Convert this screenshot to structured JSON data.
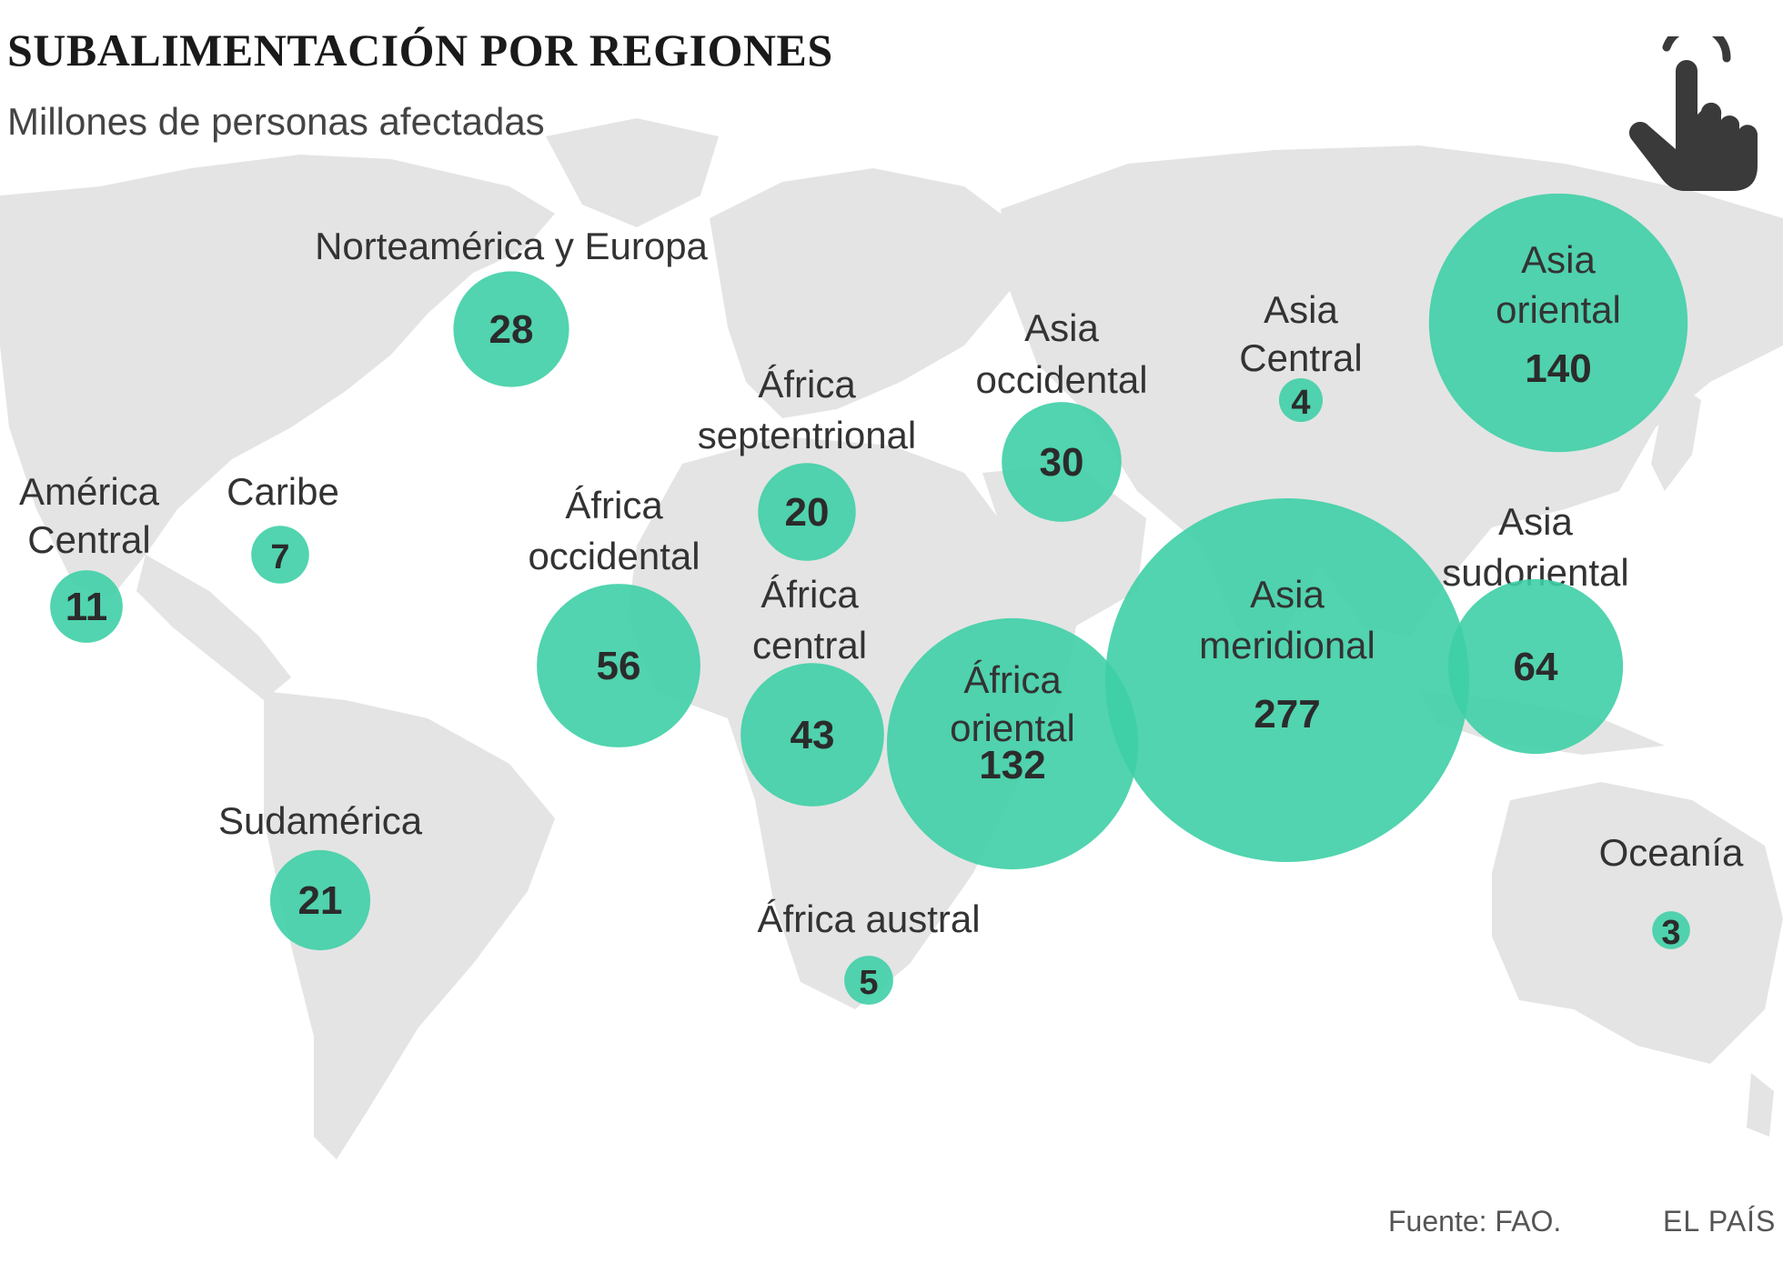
{
  "title": "SUBALIMENTACIÓN POR REGIONES",
  "subtitle": "Millones de personas afectadas",
  "footer": {
    "source": "Fuente: FAO.",
    "brand": "EL PAÍS"
  },
  "colors": {
    "bubble": "#3ecfa6",
    "land": "#e4e4e4",
    "label": "#333333",
    "value": "#2b2b2b",
    "hand_icon": "#3a3a3a"
  },
  "icon": "touch-hand-icon",
  "chart_data": {
    "type": "bubble-map",
    "unit": "Millones de personas",
    "regions": [
      {
        "id": "norteamerica-europa",
        "label": "Norteamérica y Europa",
        "value": 28
      },
      {
        "id": "america-central",
        "label": "América Central",
        "value": 11
      },
      {
        "id": "caribe",
        "label": "Caribe",
        "value": 7
      },
      {
        "id": "sudamerica",
        "label": "Sudamérica",
        "value": 21
      },
      {
        "id": "africa-septentrional",
        "label": "África septentrional",
        "value": 20
      },
      {
        "id": "africa-occidental",
        "label": "África occidental",
        "value": 56
      },
      {
        "id": "africa-central",
        "label": "África central",
        "value": 43
      },
      {
        "id": "africa-oriental",
        "label": "África oriental",
        "value": 132
      },
      {
        "id": "africa-austral",
        "label": "África austral",
        "value": 5
      },
      {
        "id": "asia-occidental",
        "label": "Asia occidental",
        "value": 30
      },
      {
        "id": "asia-central",
        "label": "Asia Central",
        "value": 4
      },
      {
        "id": "asia-oriental",
        "label": "Asia oriental",
        "value": 140
      },
      {
        "id": "asia-meridional",
        "label": "Asia meridional",
        "value": 277
      },
      {
        "id": "asia-sudoriental",
        "label": "Asia sudoriental",
        "value": 64
      },
      {
        "id": "oceania",
        "label": "Oceanía",
        "value": 3
      }
    ]
  }
}
